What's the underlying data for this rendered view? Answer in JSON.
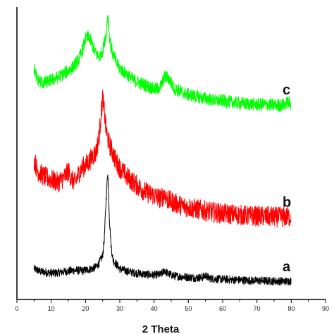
{
  "chart_data": {
    "type": "line",
    "title": "",
    "xlabel": "2 Theta",
    "ylabel": "",
    "xlim": [
      0,
      90
    ],
    "x_ticks": [
      "0",
      "10",
      "20",
      "30",
      "40",
      "50",
      "60",
      "70",
      "80",
      "90"
    ],
    "grid": false,
    "legend": "none",
    "series": [
      {
        "name": "a",
        "color": "#000000",
        "x": [
          5,
          7,
          9,
          11,
          13,
          15,
          17,
          19,
          20,
          21,
          22,
          23,
          24,
          25,
          25.5,
          26,
          26.5,
          27,
          27.5,
          28,
          29,
          30,
          32,
          34,
          36,
          38,
          40,
          42,
          43,
          44,
          46,
          48,
          50,
          52,
          54,
          55,
          56,
          58,
          60,
          62,
          64,
          66,
          68,
          70,
          72,
          74,
          76,
          78,
          80
        ],
        "y": [
          0.105,
          0.095,
          0.092,
          0.09,
          0.094,
          0.097,
          0.1,
          0.098,
          0.1,
          0.103,
          0.106,
          0.11,
          0.125,
          0.15,
          0.21,
          0.34,
          0.44,
          0.27,
          0.18,
          0.135,
          0.12,
          0.105,
          0.097,
          0.092,
          0.088,
          0.085,
          0.084,
          0.085,
          0.1,
          0.088,
          0.08,
          0.078,
          0.076,
          0.074,
          0.075,
          0.082,
          0.073,
          0.07,
          0.069,
          0.068,
          0.067,
          0.066,
          0.065,
          0.064,
          0.064,
          0.063,
          0.063,
          0.062,
          0.063
        ]
      },
      {
        "name": "b",
        "color": "#ff0000",
        "x": [
          5,
          6,
          7,
          8,
          10,
          12,
          14,
          15,
          16,
          17,
          18,
          19,
          20,
          21,
          22,
          23,
          24,
          24.5,
          25,
          25.5,
          26,
          26.5,
          27,
          28,
          29,
          30,
          32,
          34,
          36,
          38,
          40,
          42,
          43,
          44,
          46,
          48,
          50,
          52,
          54,
          56,
          58,
          60,
          62,
          64,
          66,
          68,
          70,
          72,
          74,
          76,
          78,
          80
        ],
        "y": [
          0.48,
          0.44,
          0.43,
          0.42,
          0.41,
          0.4,
          0.42,
          0.44,
          0.41,
          0.4,
          0.43,
          0.45,
          0.46,
          0.47,
          0.49,
          0.5,
          0.56,
          0.63,
          0.69,
          0.64,
          0.58,
          0.55,
          0.53,
          0.5,
          0.47,
          0.45,
          0.42,
          0.4,
          0.38,
          0.365,
          0.355,
          0.345,
          0.36,
          0.34,
          0.33,
          0.32,
          0.315,
          0.31,
          0.305,
          0.3,
          0.297,
          0.294,
          0.292,
          0.29,
          0.288,
          0.286,
          0.285,
          0.284,
          0.283,
          0.282,
          0.282,
          0.283
        ]
      },
      {
        "name": "c",
        "color": "#00ff00",
        "x": [
          5,
          6,
          8,
          10,
          12,
          14,
          16,
          18,
          19,
          20,
          21,
          22,
          23,
          24,
          25,
          26,
          26.5,
          27,
          27.5,
          28,
          29,
          30,
          32,
          34,
          36,
          38,
          40,
          41,
          42,
          43,
          44,
          45,
          46,
          48,
          50,
          52,
          54,
          56,
          58,
          60,
          62,
          64,
          66,
          68,
          70,
          72,
          74,
          76,
          78,
          79,
          80
        ],
        "y": [
          0.79,
          0.75,
          0.74,
          0.75,
          0.76,
          0.775,
          0.79,
          0.82,
          0.85,
          0.89,
          0.9,
          0.87,
          0.84,
          0.83,
          0.85,
          0.91,
          0.98,
          0.9,
          0.86,
          0.84,
          0.81,
          0.79,
          0.77,
          0.75,
          0.74,
          0.73,
          0.72,
          0.72,
          0.73,
          0.76,
          0.76,
          0.74,
          0.72,
          0.71,
          0.7,
          0.695,
          0.69,
          0.685,
          0.68,
          0.68,
          0.675,
          0.672,
          0.67,
          0.668,
          0.667,
          0.666,
          0.665,
          0.664,
          0.665,
          0.675,
          0.668
        ]
      }
    ]
  }
}
